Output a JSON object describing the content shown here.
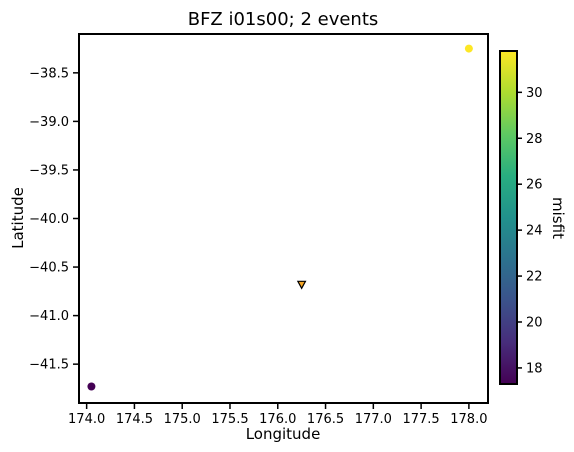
{
  "chart_data": {
    "type": "scatter",
    "title": "BFZ i01s00; 2 events",
    "xlabel": "Longitude",
    "ylabel": "Latitude",
    "xlim": [
      173.92,
      178.2
    ],
    "ylim": [
      -41.9,
      -38.1
    ],
    "xticks": [
      174.0,
      174.5,
      175.0,
      175.5,
      176.0,
      176.5,
      177.0,
      177.5,
      178.0
    ],
    "xtick_labels": [
      "174.0",
      "174.5",
      "175.0",
      "175.5",
      "176.0",
      "176.5",
      "177.0",
      "177.5",
      "178.0"
    ],
    "yticks": [
      -38.5,
      -39.0,
      -39.5,
      -40.0,
      -40.5,
      -41.0,
      -41.5
    ],
    "ytick_labels": [
      "−38.5",
      "−39.0",
      "−39.5",
      "−40.0",
      "−40.5",
      "−41.0",
      "−41.5"
    ],
    "grid": false,
    "events": [
      {
        "lon": 178.0,
        "lat": -38.25,
        "misfit": 31.8,
        "color": "#fde725"
      },
      {
        "lon": 174.05,
        "lat": -41.73,
        "misfit": 17.3,
        "color": "#440154"
      }
    ],
    "station": {
      "lon": 176.25,
      "lat": -40.68,
      "marker": "triangle-down",
      "color": "#f5a623",
      "edgecolor": "#000000"
    },
    "colorbar": {
      "label": "misfit",
      "colormap": "viridis",
      "vmin": 17.3,
      "vmax": 31.8,
      "ticks": [
        18,
        20,
        22,
        24,
        26,
        28,
        30
      ],
      "tick_labels": [
        "18",
        "20",
        "22",
        "24",
        "26",
        "28",
        "30"
      ]
    }
  }
}
